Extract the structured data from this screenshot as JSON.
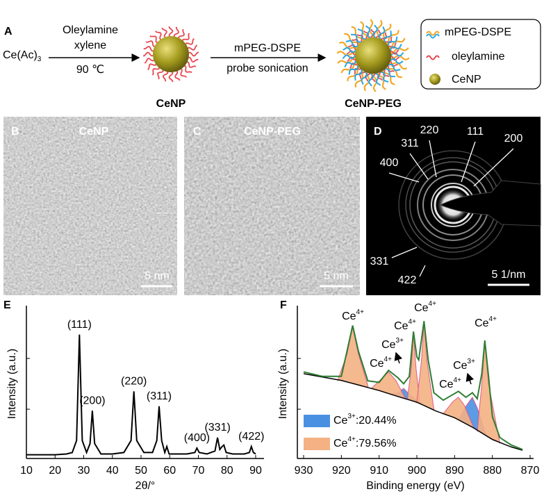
{
  "panel_a": {
    "letter": "A",
    "reactant": "Ce(Ac)",
    "reactant_subscript": "3",
    "step1_reagents": [
      "Oleylamine",
      "xylene"
    ],
    "step1_condition": "90 ℃",
    "product1": "CeNP",
    "step2_reagent": "mPEG-DSPE",
    "step2_condition": "probe sonication",
    "product2": "CeNP-PEG",
    "legend": [
      "mPEG-DSPE",
      "oleylamine",
      "CeNP"
    ]
  },
  "panel_b": {
    "letter": "B",
    "label": "CeNP",
    "scale_bar": "5 nm"
  },
  "panel_c": {
    "letter": "C",
    "label": "CeNP-PEG",
    "scale_bar": "5 nm"
  },
  "panel_d": {
    "letter": "D",
    "rings": [
      "400",
      "311",
      "220",
      "111",
      "200",
      "331",
      "422"
    ],
    "scale_bar": "5 1/nm"
  },
  "chart_data": [
    {
      "type": "line",
      "panel": "E",
      "xlabel": "2θ/°",
      "ylabel": "Intensity (a.u.)",
      "color": "#000000",
      "x": [
        10,
        15,
        20,
        24,
        26,
        27.5,
        28.5,
        29.5,
        31,
        32.2,
        33,
        33.8,
        36,
        40,
        44,
        46.5,
        47.5,
        48.5,
        51,
        54,
        55.5,
        56.3,
        57.2,
        58.3,
        59,
        59.8,
        62,
        66,
        68.8,
        69.5,
        70.3,
        73,
        75.8,
        76.7,
        77.5,
        78.3,
        78.9,
        79.7,
        82,
        86,
        87.8,
        88.5,
        89.2,
        90
      ],
      "values": [
        2.5,
        2.5,
        2.5,
        3,
        4,
        12,
        83,
        12,
        4,
        10,
        32,
        10,
        3,
        3,
        4,
        12,
        45,
        12,
        4,
        4,
        12,
        35,
        12,
        4,
        8,
        3,
        3,
        3,
        4,
        7,
        4,
        3,
        5,
        14,
        6,
        8,
        9,
        4,
        3,
        3,
        4,
        8,
        4,
        3
      ],
      "xlim": [
        10,
        90
      ],
      "xticks": [
        10,
        20,
        30,
        40,
        50,
        60,
        70,
        80,
        90
      ],
      "ylim": [
        0,
        100
      ],
      "peak_labels": [
        {
          "label": "(111)",
          "x": 28.5
        },
        {
          "label": "(200)",
          "x": 33
        },
        {
          "label": "(220)",
          "x": 47.5
        },
        {
          "label": "(311)",
          "x": 56.3
        },
        {
          "label": "(400)",
          "x": 69.5
        },
        {
          "label": "(331)",
          "x": 76.7
        },
        {
          "label": "(422)",
          "x": 88.5
        }
      ]
    },
    {
      "type": "xps",
      "panel": "F",
      "xlabel": "Binding energy (eV)",
      "ylabel": "Intensity (a.u.)",
      "color": "#2e7d32",
      "x": [
        930,
        925,
        920,
        918.5,
        917,
        915.5,
        913,
        910,
        907.5,
        905,
        903.5,
        902,
        900.9,
        900,
        899.5,
        898.1,
        897,
        895.5,
        893,
        889,
        887,
        885.3,
        884,
        882.8,
        882,
        881,
        880,
        878,
        875,
        872
      ],
      "values": [
        58,
        55,
        55,
        72,
        89,
        72,
        52,
        51,
        59,
        54,
        50,
        55,
        85,
        68,
        66,
        92,
        66,
        44,
        39,
        45,
        41,
        44,
        40,
        57,
        79,
        55,
        28,
        14,
        9,
        6
      ],
      "background": {
        "color": "#000000",
        "x": [
          930,
          920,
          910,
          905,
          900,
          895,
          890,
          885,
          880,
          875,
          872
        ],
        "values": [
          56.8,
          52.3,
          45.5,
          41.5,
          37.7,
          31.8,
          27.3,
          20.5,
          12.7,
          7.7,
          5.5
        ]
      },
      "xlim": [
        930,
        870
      ],
      "xticks": [
        930,
        920,
        910,
        900,
        890,
        880,
        870
      ],
      "ylim": [
        0,
        100
      ],
      "species": [
        {
          "ion": "Ce",
          "charge": "3+",
          "share": ":20.44%",
          "color": "#4a90e2",
          "peaks": [
            {
              "x": [
                907,
                905,
                903.5,
                902,
                899
              ],
              "values": [
                43,
                44,
                47,
                43,
                37
              ]
            },
            {
              "x": [
                889,
                887,
                885.3,
                884,
                881.5
              ],
              "values": [
                26,
                35,
                41,
                34,
                15
              ]
            }
          ]
        },
        {
          "ion": "Ce",
          "charge": "4+",
          "share": ":79.56%",
          "color": "#f4b183",
          "peaks": [
            {
              "x": [
                921,
                918.5,
                917,
                915.5,
                913
              ],
              "values": [
                52,
                70,
                88,
                70,
                49
              ]
            },
            {
              "x": [
                912,
                909.5,
                907.5,
                905.5,
                903
              ],
              "values": [
                47,
                53,
                58,
                52,
                40
              ]
            },
            {
              "x": [
                902.5,
                901.5,
                900.9,
                900.2,
                899.2
              ],
              "values": [
                40,
                60,
                84,
                60,
                38
              ]
            },
            {
              "x": [
                900,
                898.8,
                898.1,
                897.3,
                895.5
              ],
              "values": [
                38,
                65,
                91,
                65,
                33
              ]
            },
            {
              "x": [
                893,
                890.5,
                889,
                887.5,
                885
              ],
              "values": [
                30,
                38,
                41,
                36,
                21
              ]
            },
            {
              "x": [
                884,
                882.8,
                882,
                881,
                878
              ],
              "values": [
                18,
                50,
                78,
                50,
                10
              ]
            }
          ]
        }
      ],
      "annotations": [
        {
          "ion": "Ce",
          "charge": "4+"
        },
        {
          "ion": "Ce",
          "charge": "4+"
        },
        {
          "ion": "Ce",
          "charge": "3+"
        },
        {
          "ion": "Ce",
          "charge": "4+"
        },
        {
          "ion": "Ce",
          "charge": "4+"
        },
        {
          "ion": "Ce",
          "charge": "4+"
        },
        {
          "ion": "Ce",
          "charge": "3+"
        },
        {
          "ion": "Ce",
          "charge": "4+"
        }
      ]
    }
  ]
}
